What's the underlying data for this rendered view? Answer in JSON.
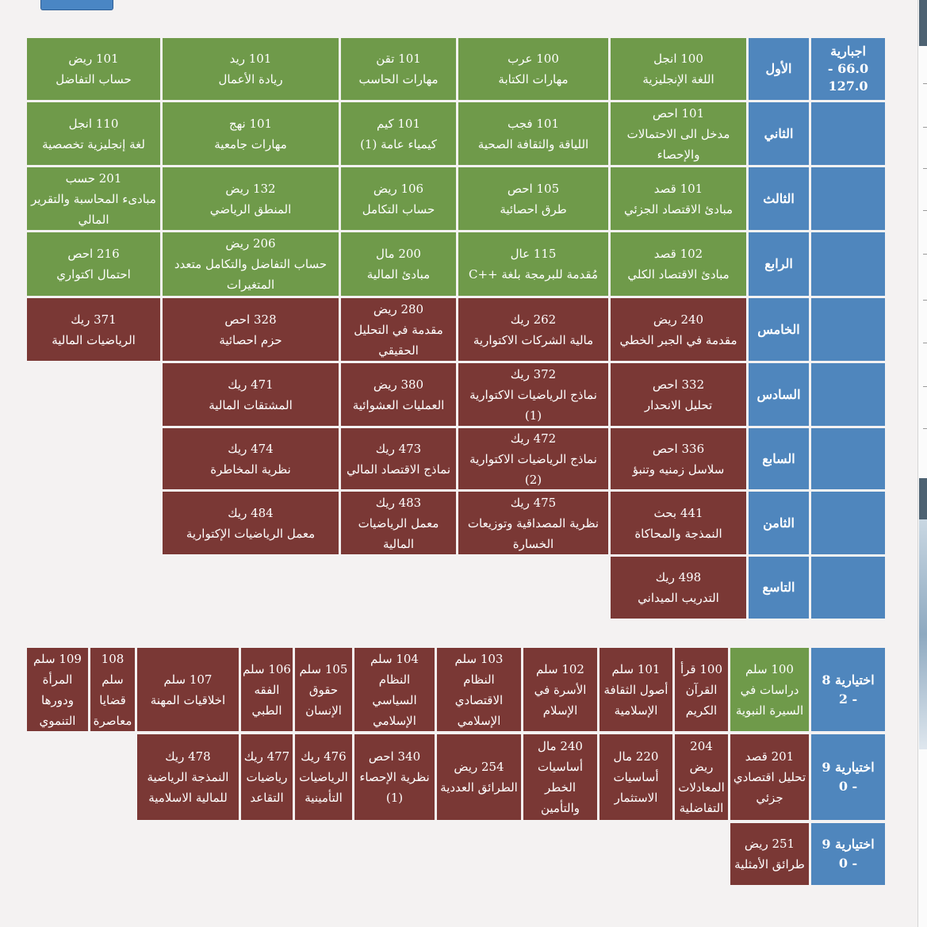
{
  "groups": {
    "mandatory": {
      "title": "اجبارية",
      "credits": "66.0 - 127.0"
    },
    "elective_1": {
      "title": "اختيارية 8",
      "credits": "- 2"
    },
    "elective_2": {
      "title": "اختيارية 9",
      "credits": "- 0"
    },
    "elective_3": {
      "title": "اختيارية 9",
      "credits": "- 0"
    }
  },
  "levels": [
    {
      "name": "الأول"
    },
    {
      "name": "الثاني"
    },
    {
      "name": "الثالث"
    },
    {
      "name": "الرابع"
    },
    {
      "name": "الخامس"
    },
    {
      "name": "السادس"
    },
    {
      "name": "السابع"
    },
    {
      "name": "الثامن"
    },
    {
      "name": "التاسع"
    }
  ],
  "courses": {
    "l1": [
      {
        "code": "100 انجل",
        "title": "اللغة الإنجليزية"
      },
      {
        "code": "100 عرب",
        "title": "مهارات الكتابة"
      },
      {
        "code": "101 تقن",
        "title": "مهارات الحاسب"
      },
      {
        "code": "101 ريد",
        "title": "ريادة الأعمال"
      },
      {
        "code": "101 ريض",
        "title": "حساب التفاضل"
      }
    ],
    "l2": [
      {
        "code": "101 احص",
        "title": "مدخل الى الاحتمالات والإحصاء"
      },
      {
        "code": "101 فجب",
        "title": "اللياقة والثقافة الصحية"
      },
      {
        "code": "101 كيم",
        "title": "كيمياء عامة (1)"
      },
      {
        "code": "101 نهج",
        "title": "مهارات جامعية"
      },
      {
        "code": "110 انجل",
        "title": "لغة إنجليزية تخصصية"
      }
    ],
    "l3": [
      {
        "code": "101 قصد",
        "title": "مبادئ الاقتصاد الجزئي"
      },
      {
        "code": "105 احص",
        "title": "طرق احصائية"
      },
      {
        "code": "106 ريض",
        "title": "حساب التكامل"
      },
      {
        "code": "132 ريض",
        "title": "المنطق الرياضي"
      },
      {
        "code": "201 حسب",
        "title": "مبادىء المحاسبة والتقرير المالي"
      }
    ],
    "l4": [
      {
        "code": "102 قصد",
        "title": "مبادئ الاقتصاد الكلي"
      },
      {
        "code": "115 عال",
        "title": "مُقدمة للبرمجة بلغة ++C"
      },
      {
        "code": "200 مال",
        "title": "مبادئ المالية"
      },
      {
        "code": "206 ريض",
        "title": "حساب التفاضل والتكامل متعدد المتغيرات"
      },
      {
        "code": "216 احص",
        "title": "احتمال اكتواري"
      }
    ],
    "l5": [
      {
        "code": "240 ريض",
        "title": "مقدمة في الجبر الخطي"
      },
      {
        "code": "262 ريك",
        "title": "مالية الشركات الاكتوارية"
      },
      {
        "code": "280 ريض",
        "title": "مقدمة في التحليل الحقيقي"
      },
      {
        "code": "328 احص",
        "title": "حزم احصائية"
      },
      {
        "code": "371 ريك",
        "title": "الرياضيات المالية"
      }
    ],
    "l6": [
      {
        "code": "332 احص",
        "title": "تحليل الانحدار"
      },
      {
        "code": "372 ريك",
        "title": "نماذج الرياضيات الاكتوارية (1)"
      },
      {
        "code": "380 ريض",
        "title": "العمليات العشوائية"
      },
      {
        "code": "471 ريك",
        "title": "المشتقات المالية"
      }
    ],
    "l7": [
      {
        "code": "336 احص",
        "title": "سلاسل زمنيه وتنبؤ"
      },
      {
        "code": "472 ريك",
        "title": "نماذج الرياضيات الاكتوارية (2)"
      },
      {
        "code": "473 ريك",
        "title": "نماذج الاقتصاد المالي"
      },
      {
        "code": "474 ريك",
        "title": "نظرية المخاطرة"
      }
    ],
    "l8": [
      {
        "code": "441 بحث",
        "title": "النمذجة والمحاكاة"
      },
      {
        "code": "475 ريك",
        "title": "نظرية المصداقية وتوزيعات الخسارة"
      },
      {
        "code": "483 ريك",
        "title": "معمل الرياضيات المالية"
      },
      {
        "code": "484 ريك",
        "title": "معمل الرياضيات الإكتوارية"
      }
    ],
    "l9": [
      {
        "code": "498 ريك",
        "title": "التدريب الميداني"
      }
    ],
    "e1": [
      {
        "code": "100 سلم",
        "title": "دراسات في السيرة النبوية"
      },
      {
        "code": "100 قرأ",
        "title": "القرآن الكريم"
      },
      {
        "code": "101 سلم",
        "title": "أصول الثقافة الإسلامية"
      },
      {
        "code": "102 سلم",
        "title": "الأسرة في الإسلام"
      },
      {
        "code": "103 سلم",
        "title": "النظام الاقتصادي الإسلامي"
      },
      {
        "code": "104 سلم",
        "title": "النظام السياسي الإسلامي"
      },
      {
        "code": "105 سلم",
        "title": "حقوق الإنسان"
      },
      {
        "code": "106 سلم",
        "title": "الفقه الطبي"
      },
      {
        "code": "107 سلم",
        "title": "اخلاقيات المهنة"
      },
      {
        "code": "108 سلم",
        "title": "قضايا معاصرة"
      },
      {
        "code": "109 سلم",
        "title": "المرأة ودورها التنموي"
      }
    ],
    "e2": [
      {
        "code": "201 قصد",
        "title": "تحليل اقتصادي جزئي"
      },
      {
        "code": "204 ريض",
        "title": "المعادلات التفاضلية"
      },
      {
        "code": "220 مال",
        "title": "أساسيات الاستثمار"
      },
      {
        "code": "240 مال",
        "title": "أساسيات الخطر والتأمين"
      },
      {
        "code": "254 ريض",
        "title": "الطرائق العددية"
      },
      {
        "code": "340 احص",
        "title": "نظرية الإحصاء (1)"
      },
      {
        "code": "476 ريك",
        "title": "الرياضيات التأمينية"
      },
      {
        "code": "477 ريك",
        "title": "رياضيات التقاعد"
      },
      {
        "code": "478 ريك",
        "title": "النمذجة الرياضية للمالية الاسلامية"
      }
    ],
    "e3": [
      {
        "code": "251 ريض",
        "title": "طرائق الأمثلية"
      }
    ]
  }
}
